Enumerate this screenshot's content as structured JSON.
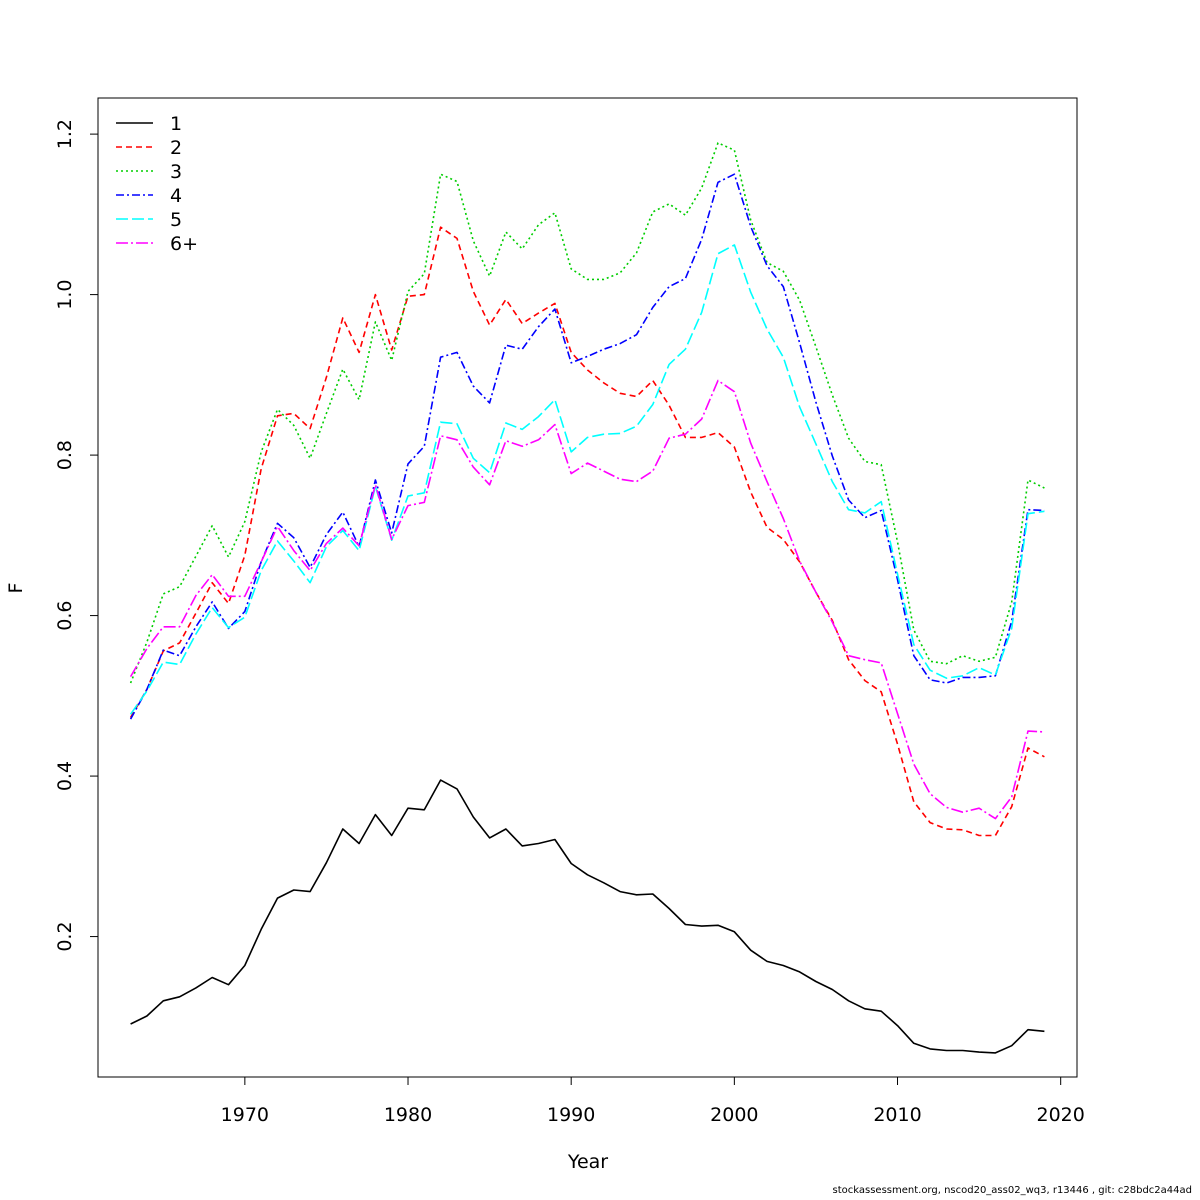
{
  "chart_data": {
    "type": "line",
    "title": "",
    "xlabel": "Year",
    "ylabel": "F",
    "xlim": [
      1961,
      2021
    ],
    "ylim": [
      0.025,
      1.245
    ],
    "xticks": [
      1970,
      1980,
      1990,
      2000,
      2010,
      2020
    ],
    "yticks": [
      0.2,
      0.4,
      0.6,
      0.8,
      1.0,
      1.2
    ],
    "ytick_labels": [
      "0.2",
      "0.4",
      "0.6",
      "0.8",
      "1.0",
      "1.2"
    ],
    "grid": false,
    "legend": "top-left",
    "x": [
      1963,
      1964,
      1965,
      1966,
      1967,
      1968,
      1969,
      1970,
      1971,
      1972,
      1973,
      1974,
      1975,
      1976,
      1977,
      1978,
      1979,
      1980,
      1981,
      1982,
      1983,
      1984,
      1985,
      1986,
      1987,
      1988,
      1989,
      1990,
      1991,
      1992,
      1993,
      1994,
      1995,
      1996,
      1997,
      1998,
      1999,
      2000,
      2001,
      2002,
      2003,
      2004,
      2005,
      2006,
      2007,
      2008,
      2009,
      2010,
      2011,
      2012,
      2013,
      2014,
      2015,
      2016,
      2017,
      2018,
      2019
    ],
    "series": [
      {
        "name": "1",
        "color": "#000000",
        "dash": "",
        "values": [
          0.091,
          0.101,
          0.12,
          0.125,
          0.136,
          0.149,
          0.14,
          0.164,
          0.209,
          0.248,
          0.258,
          0.256,
          0.292,
          0.334,
          0.316,
          0.352,
          0.326,
          0.36,
          0.358,
          0.395,
          0.384,
          0.349,
          0.323,
          0.334,
          0.313,
          0.316,
          0.321,
          0.291,
          0.277,
          0.267,
          0.256,
          0.252,
          0.253,
          0.235,
          0.215,
          0.213,
          0.214,
          0.206,
          0.183,
          0.169,
          0.164,
          0.156,
          0.144,
          0.134,
          0.12,
          0.11,
          0.107,
          0.089,
          0.067,
          0.06,
          0.058,
          0.058,
          0.056,
          0.055,
          0.064,
          0.084,
          0.082
        ]
      },
      {
        "name": "2",
        "color": "#ff0000",
        "dash": "6,4",
        "values": [
          0.473,
          0.508,
          0.556,
          0.566,
          0.603,
          0.641,
          0.615,
          0.675,
          0.783,
          0.849,
          0.852,
          0.833,
          0.897,
          0.971,
          0.928,
          1.0,
          0.931,
          0.998,
          1.0,
          1.084,
          1.07,
          1.004,
          0.962,
          0.994,
          0.964,
          0.977,
          0.989,
          0.928,
          0.906,
          0.89,
          0.877,
          0.873,
          0.893,
          0.862,
          0.822,
          0.822,
          0.828,
          0.81,
          0.754,
          0.71,
          0.695,
          0.667,
          0.629,
          0.594,
          0.545,
          0.519,
          0.505,
          0.44,
          0.368,
          0.342,
          0.334,
          0.333,
          0.326,
          0.326,
          0.362,
          0.435,
          0.424
        ]
      },
      {
        "name": "3",
        "color": "#00cd00",
        "dash": "2,3",
        "values": [
          0.516,
          0.567,
          0.627,
          0.636,
          0.674,
          0.712,
          0.673,
          0.717,
          0.804,
          0.857,
          0.837,
          0.796,
          0.852,
          0.907,
          0.869,
          0.966,
          0.918,
          1.004,
          1.026,
          1.15,
          1.141,
          1.067,
          1.023,
          1.078,
          1.057,
          1.087,
          1.102,
          1.032,
          1.019,
          1.019,
          1.027,
          1.052,
          1.103,
          1.113,
          1.099,
          1.133,
          1.189,
          1.18,
          1.093,
          1.04,
          1.029,
          0.993,
          0.935,
          0.875,
          0.821,
          0.792,
          0.788,
          0.692,
          0.582,
          0.543,
          0.54,
          0.55,
          0.543,
          0.548,
          0.617,
          0.769,
          0.759
        ]
      },
      {
        "name": "4",
        "color": "#0000ff",
        "dash": "8,3,2,3",
        "values": [
          0.471,
          0.508,
          0.557,
          0.55,
          0.586,
          0.617,
          0.584,
          0.605,
          0.667,
          0.715,
          0.697,
          0.66,
          0.701,
          0.729,
          0.686,
          0.769,
          0.703,
          0.789,
          0.811,
          0.922,
          0.928,
          0.886,
          0.865,
          0.937,
          0.932,
          0.96,
          0.982,
          0.915,
          0.923,
          0.932,
          0.939,
          0.95,
          0.984,
          1.01,
          1.02,
          1.069,
          1.14,
          1.15,
          1.085,
          1.036,
          1.01,
          0.94,
          0.866,
          0.799,
          0.744,
          0.722,
          0.731,
          0.645,
          0.55,
          0.52,
          0.516,
          0.523,
          0.523,
          0.525,
          0.593,
          0.732,
          0.731
        ]
      },
      {
        "name": "5",
        "color": "#00ffff",
        "dash": "12,4",
        "values": [
          0.477,
          0.506,
          0.542,
          0.539,
          0.577,
          0.61,
          0.585,
          0.598,
          0.656,
          0.693,
          0.668,
          0.641,
          0.686,
          0.706,
          0.681,
          0.761,
          0.694,
          0.749,
          0.753,
          0.841,
          0.839,
          0.796,
          0.778,
          0.84,
          0.832,
          0.848,
          0.869,
          0.804,
          0.822,
          0.826,
          0.827,
          0.836,
          0.863,
          0.913,
          0.932,
          0.978,
          1.051,
          1.062,
          1.003,
          0.957,
          0.922,
          0.86,
          0.814,
          0.767,
          0.732,
          0.728,
          0.742,
          0.652,
          0.564,
          0.532,
          0.522,
          0.525,
          0.535,
          0.526,
          0.584,
          0.727,
          0.73
        ]
      },
      {
        "name": "6+",
        "color": "#ff00ff",
        "dash": "12,3,2,3",
        "values": [
          0.524,
          0.559,
          0.586,
          0.586,
          0.625,
          0.651,
          0.624,
          0.624,
          0.667,
          0.711,
          0.681,
          0.656,
          0.69,
          0.709,
          0.687,
          0.763,
          0.695,
          0.737,
          0.741,
          0.824,
          0.819,
          0.785,
          0.763,
          0.818,
          0.811,
          0.819,
          0.838,
          0.777,
          0.79,
          0.78,
          0.77,
          0.767,
          0.78,
          0.821,
          0.826,
          0.845,
          0.893,
          0.879,
          0.815,
          0.767,
          0.721,
          0.668,
          0.629,
          0.592,
          0.55,
          0.545,
          0.541,
          0.478,
          0.415,
          0.378,
          0.361,
          0.355,
          0.36,
          0.347,
          0.374,
          0.456,
          0.455
        ]
      }
    ]
  },
  "credit": "stockassessment.org, nscod20_ass02_wq3, r13446 , git: c28bdc2a44ad"
}
